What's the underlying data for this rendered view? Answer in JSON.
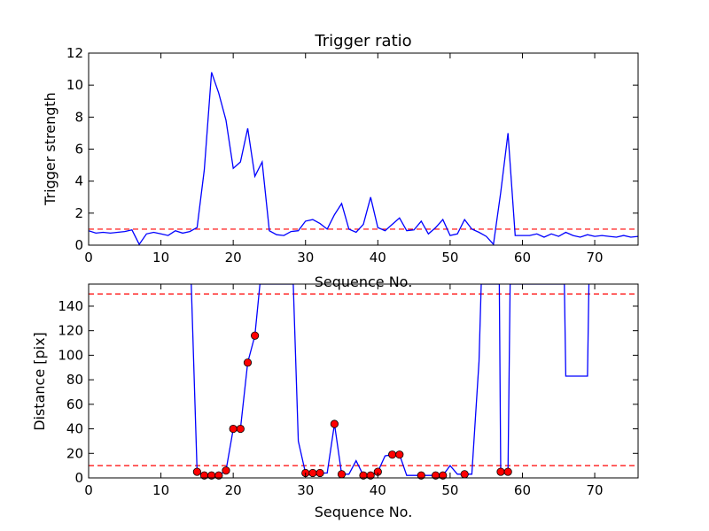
{
  "chart_data": [
    {
      "type": "line",
      "title": "Trigger ratio",
      "xlabel": "Sequence No.",
      "ylabel": "Trigger strength",
      "xlim": [
        0,
        76
      ],
      "ylim": [
        0,
        12
      ],
      "xticks": [
        0,
        10,
        20,
        30,
        40,
        50,
        60,
        70
      ],
      "yticks": [
        0,
        2,
        4,
        6,
        8,
        10,
        12
      ],
      "grid": false,
      "series": [
        {
          "color": "#0000ff",
          "x": [
            0,
            1,
            2,
            3,
            4,
            5,
            6,
            7,
            8,
            9,
            10,
            11,
            12,
            13,
            14,
            15,
            16,
            17,
            18,
            19,
            20,
            21,
            22,
            23,
            24,
            25,
            26,
            27,
            28,
            29,
            30,
            31,
            32,
            33,
            34,
            35,
            36,
            37,
            38,
            39,
            40,
            41,
            42,
            43,
            44,
            45,
            46,
            47,
            48,
            49,
            50,
            51,
            52,
            53,
            54,
            55,
            56,
            57,
            58,
            59,
            60,
            61,
            62,
            63,
            64,
            65,
            66,
            67,
            68,
            69,
            70,
            71,
            72,
            73,
            74,
            75,
            76
          ],
          "y": [
            0.9,
            0.75,
            0.8,
            0.75,
            0.8,
            0.85,
            0.95,
            0.05,
            0.7,
            0.8,
            0.7,
            0.6,
            0.9,
            0.75,
            0.85,
            1.1,
            4.7,
            10.8,
            9.5,
            7.8,
            4.8,
            5.2,
            7.3,
            4.3,
            5.2,
            0.9,
            0.65,
            0.6,
            0.85,
            0.9,
            1.5,
            1.6,
            1.35,
            1.0,
            1.9,
            2.6,
            1.0,
            0.8,
            1.3,
            3.0,
            1.1,
            0.9,
            1.3,
            1.7,
            0.9,
            0.95,
            1.5,
            0.7,
            1.1,
            1.6,
            0.6,
            0.7,
            1.6,
            1.0,
            0.8,
            0.55,
            0.05,
            3.3,
            7.0,
            0.6,
            0.6,
            0.6,
            0.7,
            0.5,
            0.7,
            0.55,
            0.8,
            0.6,
            0.5,
            0.65,
            0.55,
            0.6,
            0.55,
            0.5,
            0.6,
            0.5,
            0.55
          ]
        }
      ],
      "reference_lines": [
        {
          "y": 1,
          "color": "#ff0000",
          "style": "dashed"
        }
      ]
    },
    {
      "type": "line",
      "title": "",
      "xlabel": "Sequence No.",
      "ylabel": "Distance [pix]",
      "xlim": [
        0,
        76
      ],
      "ylim": [
        0,
        158
      ],
      "xticks": [
        0,
        10,
        20,
        30,
        40,
        50,
        60,
        70
      ],
      "yticks": [
        0,
        20,
        40,
        60,
        80,
        100,
        120,
        140
      ],
      "grid": false,
      "series": [
        {
          "color": "#0000ff",
          "x": [
            14.2,
            15,
            16,
            17,
            18,
            19,
            20,
            21,
            22,
            23,
            23.7,
            28.3,
            29,
            30,
            31,
            32,
            33,
            34,
            35,
            36,
            37,
            38,
            39,
            40,
            41,
            42,
            43,
            44,
            45,
            46,
            47,
            48,
            49,
            50,
            51,
            52,
            53,
            54,
            54.3,
            56.8,
            57,
            58,
            58.3,
            65.8,
            66,
            69,
            69.2
          ],
          "y": [
            158,
            5,
            2,
            2,
            2,
            6,
            40,
            40,
            94,
            116,
            158,
            158,
            30,
            4,
            4,
            4,
            4,
            44,
            3,
            3,
            14,
            2,
            2,
            5,
            18,
            19,
            19,
            2,
            2,
            2,
            2,
            2,
            2,
            10,
            3,
            3,
            3,
            95,
            158,
            158,
            5,
            5,
            158,
            158,
            83,
            83,
            158
          ]
        }
      ],
      "markers": {
        "color": "#ff0000",
        "x": [
          15,
          16,
          17,
          18,
          19,
          20,
          21,
          22,
          23,
          30,
          31,
          32,
          34,
          35,
          38,
          39,
          40,
          42,
          43,
          46,
          48,
          49,
          52,
          57,
          58
        ],
        "y": [
          5,
          2,
          2,
          2,
          6,
          40,
          40,
          94,
          116,
          4,
          4,
          4,
          44,
          3,
          2,
          2,
          5,
          19,
          19,
          2,
          2,
          2,
          3,
          5,
          5
        ]
      },
      "reference_lines": [
        {
          "y": 10,
          "color": "#ff0000",
          "style": "dashed"
        },
        {
          "y": 150,
          "color": "#ff0000",
          "style": "dashed"
        }
      ]
    }
  ]
}
